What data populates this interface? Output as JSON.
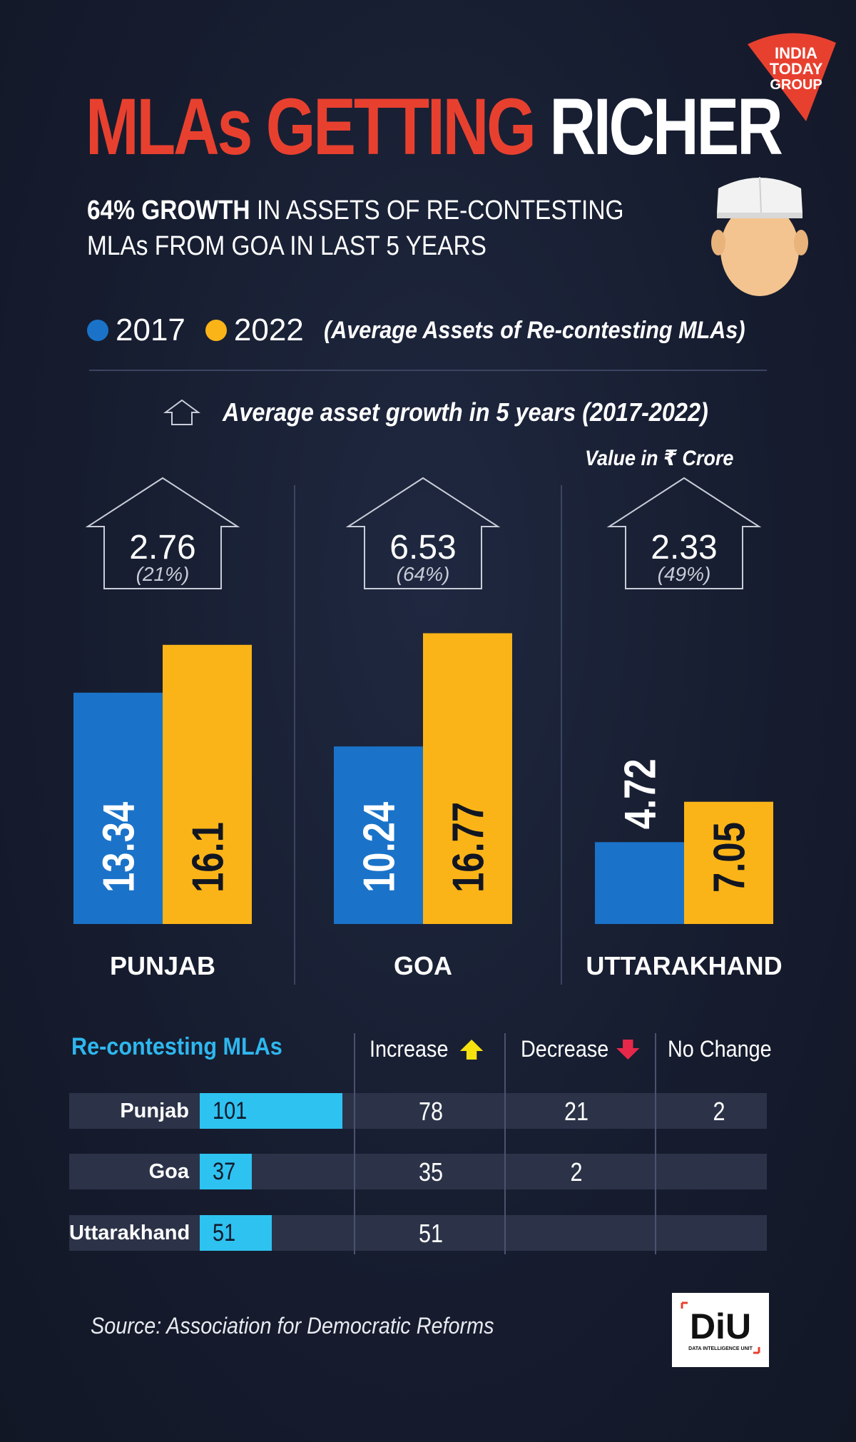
{
  "brand": {
    "logo_lines": [
      "INDIA",
      "TODAY",
      "GROUP"
    ],
    "logo_color": "#e8402f"
  },
  "header": {
    "title_red": "MLAs GETTING",
    "title_white": "RICHER",
    "subtitle_bold": "64% GROWTH",
    "subtitle_rest_line1": "IN ASSETS OF RE-CONTESTING",
    "subtitle_line2": "MLAs FROM GOA IN LAST 5 YEARS"
  },
  "legend": {
    "items": [
      {
        "label": "2017",
        "color": "#1a73c9"
      },
      {
        "label": "2022",
        "color": "#fbb418"
      }
    ],
    "note": "(Average Assets of Re-contesting MLAs)"
  },
  "growth_note": "Average asset growth in 5 years (2017-2022)",
  "unit_note": "Value in ₹ Crore",
  "chart_data": {
    "type": "bar",
    "categories": [
      "PUNJAB",
      "GOA",
      "UTTARAKHAND"
    ],
    "series": [
      {
        "name": "2017",
        "values": [
          13.34,
          10.24,
          4.72
        ],
        "labels": [
          "13.34",
          "10.24",
          "4.72"
        ],
        "color": "#1a73c9"
      },
      {
        "name": "2022",
        "values": [
          16.1,
          16.77,
          7.05
        ],
        "labels": [
          "16.1",
          "16.77",
          "7.05"
        ],
        "color": "#fbb418"
      }
    ],
    "growth": [
      {
        "value": "2.76",
        "pct": "(21%)"
      },
      {
        "value": "6.53",
        "pct": "(64%)"
      },
      {
        "value": "2.33",
        "pct": "(49%)"
      }
    ]
  },
  "table": {
    "heading": "Re-contesting MLAs",
    "columns": [
      "Increase",
      "Decrease",
      "No Change"
    ],
    "rows": [
      {
        "state": "Punjab",
        "total": 101,
        "total_label": "101",
        "increase": "78",
        "decrease": "21",
        "no_change": "2"
      },
      {
        "state": "Goa",
        "total": 37,
        "total_label": "37",
        "increase": "35",
        "decrease": "2",
        "no_change": ""
      },
      {
        "state": "Uttarakhand",
        "total": 51,
        "total_label": "51",
        "increase": "51",
        "decrease": "",
        "no_change": ""
      }
    ]
  },
  "footer": {
    "source": "Source: Association for Democratic Reforms",
    "diu_logo": "DiU",
    "diu_caption": "DATA INTELLIGENCE UNIT"
  }
}
